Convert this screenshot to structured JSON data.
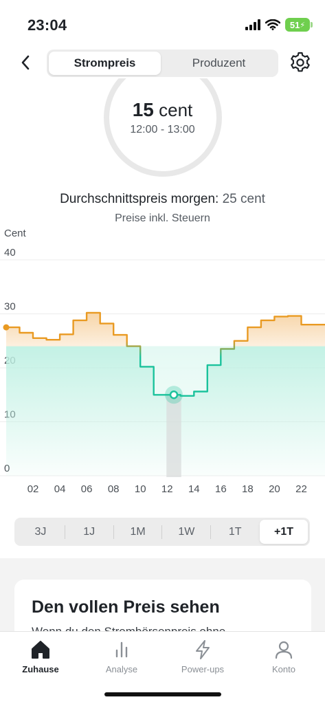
{
  "status": {
    "time": "23:04",
    "battery": "51"
  },
  "nav": {
    "tabs": [
      {
        "label": "Strompreis"
      },
      {
        "label": "Produzent"
      }
    ]
  },
  "current": {
    "price_value": "15",
    "price_unit": "cent",
    "time_range": "12:00 - 13:00"
  },
  "average": {
    "label": "Durchschnittspreis morgen:",
    "value": "25 cent",
    "note": "Preise inkl. Steuern"
  },
  "colors": {
    "teal": "#1bc29c",
    "orange": "#e99a22",
    "orange_fill": "#f7d3a4",
    "teal_fill": "#bdf0e2"
  },
  "chart_data": {
    "type": "line",
    "ylabel": "Cent",
    "ylim": [
      0,
      40
    ],
    "yticks": [
      {
        "v": 0,
        "label": "0"
      },
      {
        "v": 10,
        "label": "10"
      },
      {
        "v": 20,
        "label": "20"
      },
      {
        "v": 30,
        "label": "30"
      },
      {
        "v": 40,
        "label": "40"
      }
    ],
    "xlim": [
      0,
      24
    ],
    "xticks": [
      {
        "v": 2,
        "label": "02"
      },
      {
        "v": 4,
        "label": "04"
      },
      {
        "v": 6,
        "label": "06"
      },
      {
        "v": 8,
        "label": "08"
      },
      {
        "v": 10,
        "label": "10"
      },
      {
        "v": 12,
        "label": "12"
      },
      {
        "v": 14,
        "label": "14"
      },
      {
        "v": 16,
        "label": "16"
      },
      {
        "v": 18,
        "label": "18"
      },
      {
        "v": 20,
        "label": "20"
      },
      {
        "v": 22,
        "label": "22"
      }
    ],
    "step": true,
    "threshold": 24,
    "hours": [
      0,
      1,
      2,
      3,
      4,
      5,
      6,
      7,
      8,
      9,
      10,
      11,
      12,
      13,
      14,
      15,
      16,
      17,
      18,
      19,
      20,
      21,
      22,
      23
    ],
    "values": [
      27.5,
      26.5,
      25.5,
      25.2,
      26.2,
      28.8,
      30.2,
      28.2,
      26.1,
      24.0,
      20.2,
      15.0,
      15.0,
      14.8,
      15.6,
      20.5,
      23.5,
      25.0,
      27.5,
      28.8,
      29.5,
      29.6,
      28.0,
      28.0
    ],
    "selected_hour": 12,
    "selected_value": 15
  },
  "range_selector": {
    "options": [
      {
        "label": "3J"
      },
      {
        "label": "1J"
      },
      {
        "label": "1M"
      },
      {
        "label": "1W"
      },
      {
        "label": "1T"
      },
      {
        "label": "+1T"
      }
    ],
    "active_index": 5
  },
  "card": {
    "title": "Den vollen Preis sehen",
    "text": "Wenn du den Strombörsenpreis ohne"
  },
  "tabbar": {
    "items": [
      {
        "label": "Zuhause",
        "icon": "home-icon"
      },
      {
        "label": "Analyse",
        "icon": "bar-chart-icon"
      },
      {
        "label": "Power-ups",
        "icon": "lightning-icon"
      },
      {
        "label": "Konto",
        "icon": "person-icon"
      }
    ]
  }
}
